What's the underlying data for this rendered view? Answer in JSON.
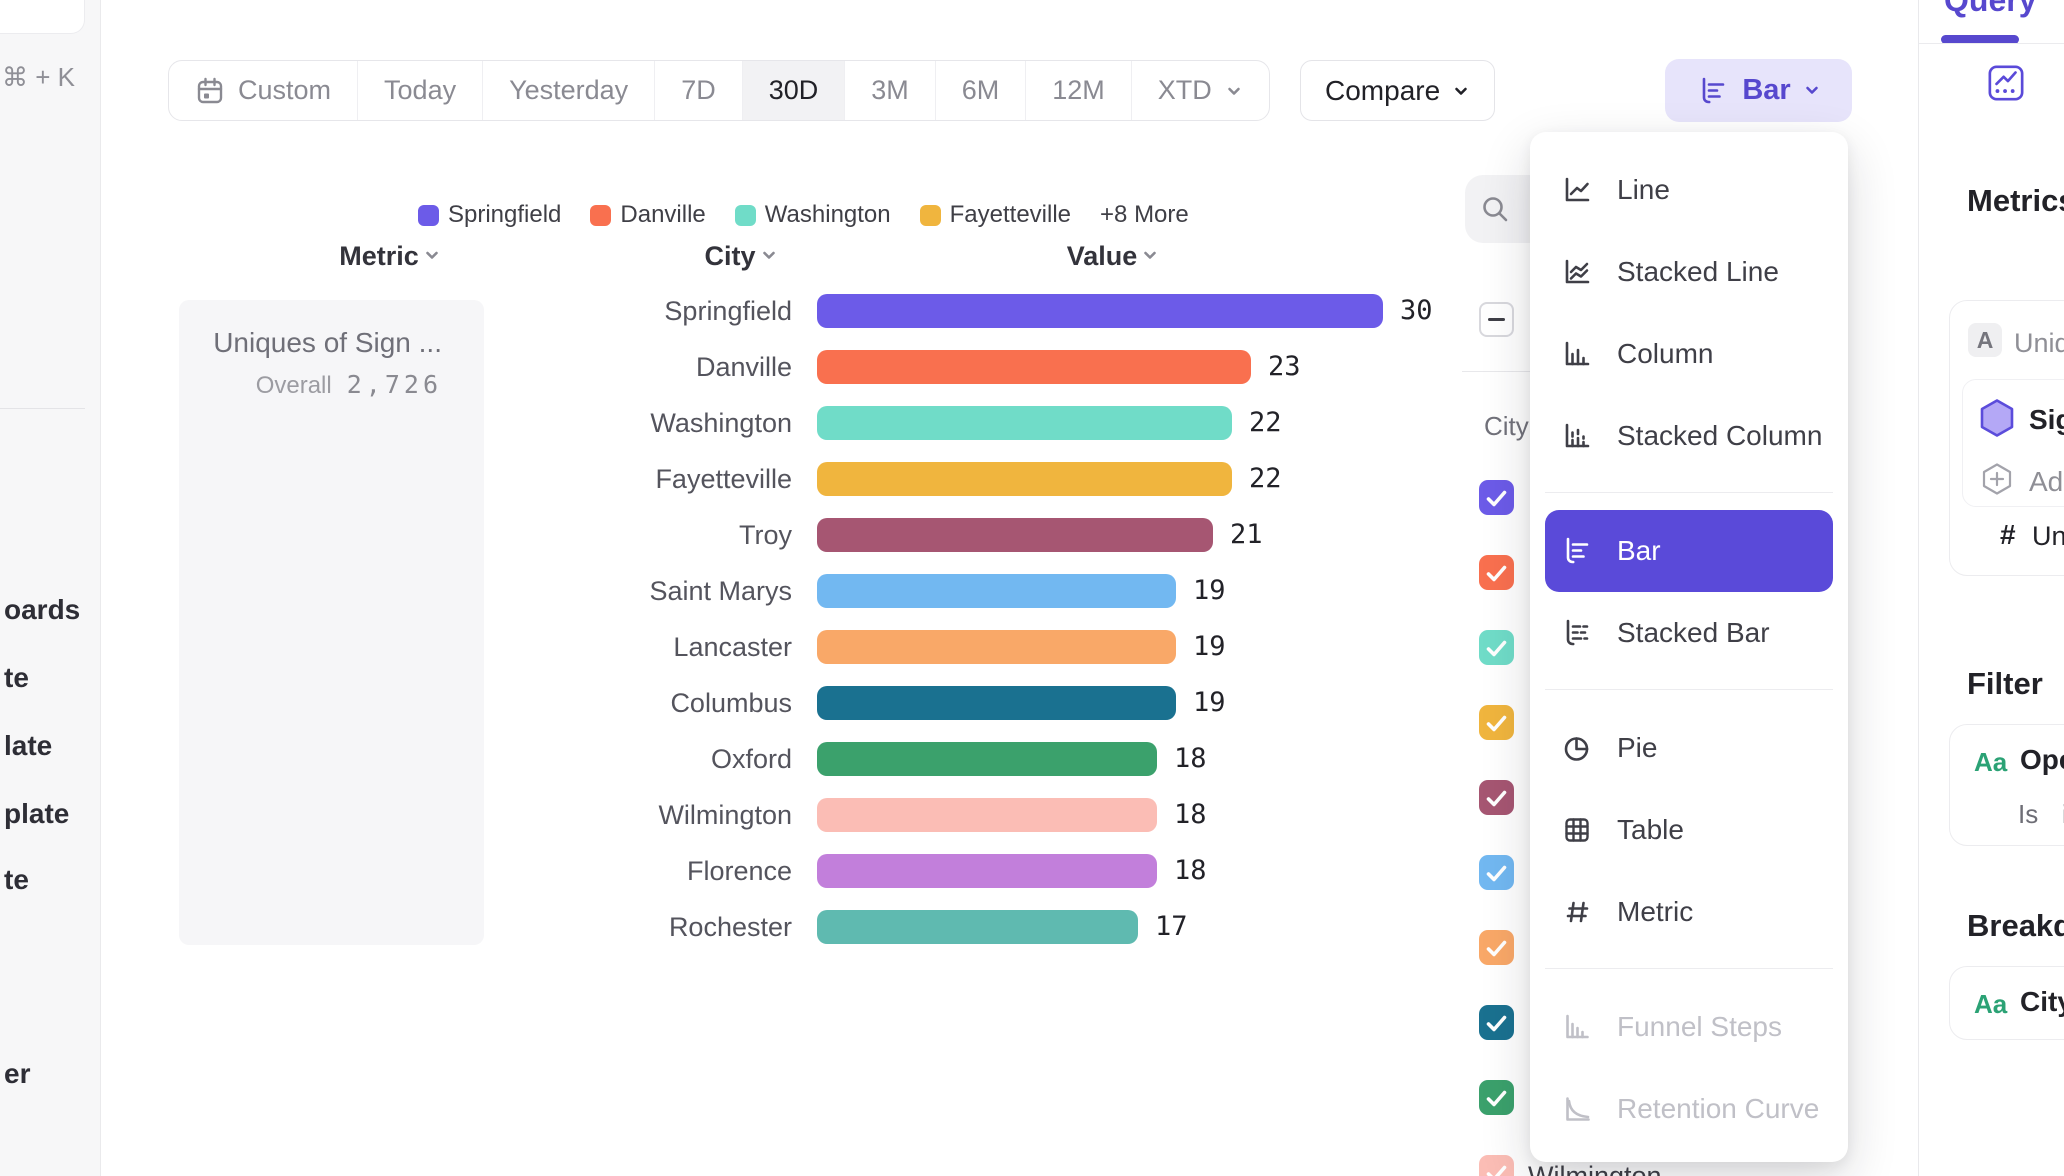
{
  "theme": {
    "accent": "#5A4AD9",
    "accent_soft": "#E7E4FB",
    "panel_gray": "#F7F7F8",
    "card_gray": "#F6F6F8"
  },
  "sidebar": {
    "shortcut_hint": "⌘ + K",
    "item_fragments": [
      "oards",
      "te",
      "late",
      "plate",
      "te",
      "er"
    ]
  },
  "toolbar": {
    "date_ranges": [
      {
        "label": "Custom",
        "icon": "calendar"
      },
      {
        "label": "Today"
      },
      {
        "label": "Yesterday"
      },
      {
        "label": "7D"
      },
      {
        "label": "30D",
        "active": true
      },
      {
        "label": "3M"
      },
      {
        "label": "6M"
      },
      {
        "label": "12M"
      },
      {
        "label": "XTD",
        "chevron": true
      }
    ],
    "active_range": "30D",
    "compare_label": "Compare",
    "chart_type_button": {
      "label": "Bar",
      "icon": "bar"
    }
  },
  "legend": {
    "items": [
      {
        "label": "Springfield",
        "color": "#6C5BE8"
      },
      {
        "label": "Danville",
        "color": "#F9704F"
      },
      {
        "label": "Washington",
        "color": "#70DCC8"
      },
      {
        "label": "Fayetteville",
        "color": "#F0B53E"
      }
    ],
    "more_label": "+8 More"
  },
  "columns": {
    "metric": "Metric",
    "city": "City",
    "value": "Value"
  },
  "metric_card": {
    "title": "Uniques of Sign ...",
    "overall_label": "Overall",
    "overall_value": "2,726"
  },
  "chart_data": {
    "type": "bar",
    "orientation": "horizontal",
    "title": "Uniques of Sign ...",
    "overall_total": "2,726",
    "categories": [
      "Springfield",
      "Danville",
      "Washington",
      "Fayetteville",
      "Troy",
      "Saint Marys",
      "Lancaster",
      "Columbus",
      "Oxford",
      "Wilmington",
      "Florence",
      "Rochester"
    ],
    "values": [
      30,
      23,
      22,
      22,
      21,
      19,
      19,
      19,
      18,
      18,
      18,
      17
    ],
    "colors": [
      "#6C5BE8",
      "#F9704F",
      "#70DCC8",
      "#F0B53E",
      "#A65672",
      "#72B8F1",
      "#F9A868",
      "#1A7190",
      "#3BA16C",
      "#FBBDB5",
      "#C27FDB",
      "#5FBAB0"
    ],
    "xlim": [
      0,
      30
    ],
    "value_labels": true,
    "grid": false,
    "legend_position": "top"
  },
  "series_panel": {
    "city_header": "City",
    "select_all_state": "indeterminate",
    "checked_count": 10,
    "partial_row_label": "Wilmington"
  },
  "chart_type_menu": {
    "selected": "Bar",
    "items": [
      {
        "label": "Line",
        "icon": "line"
      },
      {
        "label": "Stacked Line",
        "icon": "stacked-line"
      },
      {
        "label": "Column",
        "icon": "column"
      },
      {
        "label": "Stacked Column",
        "icon": "stacked-column"
      },
      {
        "divider": true
      },
      {
        "label": "Bar",
        "icon": "bar",
        "selected": true
      },
      {
        "label": "Stacked Bar",
        "icon": "stacked-bar"
      },
      {
        "divider": true
      },
      {
        "label": "Pie",
        "icon": "pie"
      },
      {
        "label": "Table",
        "icon": "table"
      },
      {
        "label": "Metric",
        "icon": "metric"
      },
      {
        "divider": true
      },
      {
        "label": "Funnel Steps",
        "icon": "funnel",
        "disabled": true
      },
      {
        "label": "Retention Curve",
        "icon": "retention",
        "disabled": true
      }
    ]
  },
  "query_panel": {
    "tab_label": "Query",
    "metrics_heading": "Metrics",
    "formula_badge": "A",
    "formula_text_fragment": "Uniq",
    "event_label_fragment": "Sig",
    "add_label_fragment": "Ad",
    "aggregation_prefix": "#",
    "aggregation_fragment": "Uniqu",
    "filter_heading": "Filter",
    "property_type_badge": "Aa",
    "filter_property_fragment": "Ope",
    "filter_operator": "Is",
    "filter_value_fragment": "i",
    "breakdown_heading_fragment": "Breakdo",
    "breakdown_property": "City"
  }
}
